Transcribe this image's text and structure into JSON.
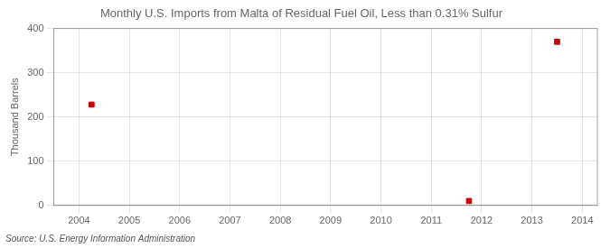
{
  "chart_data": {
    "type": "scatter",
    "title": "Monthly U.S. Imports from Malta of Residual Fuel Oil, Less than 0.31% Sulfur",
    "ylabel": "Thousand Barrels",
    "annotations": [
      "Source: U.S. Energy Information Administration"
    ],
    "x": [
      2004.25,
      2011.75,
      2013.5
    ],
    "values": [
      228,
      10,
      370
    ],
    "color": "#cc0000",
    "marker": "square",
    "xlim": [
      2003.5,
      2014.3
    ],
    "ylim": [
      0,
      400
    ],
    "xticks": [
      2004,
      2005,
      2006,
      2007,
      2008,
      2009,
      2010,
      2011,
      2012,
      2013,
      2014
    ],
    "yticks": [
      0,
      100,
      200,
      300,
      400
    ],
    "grid": true
  }
}
